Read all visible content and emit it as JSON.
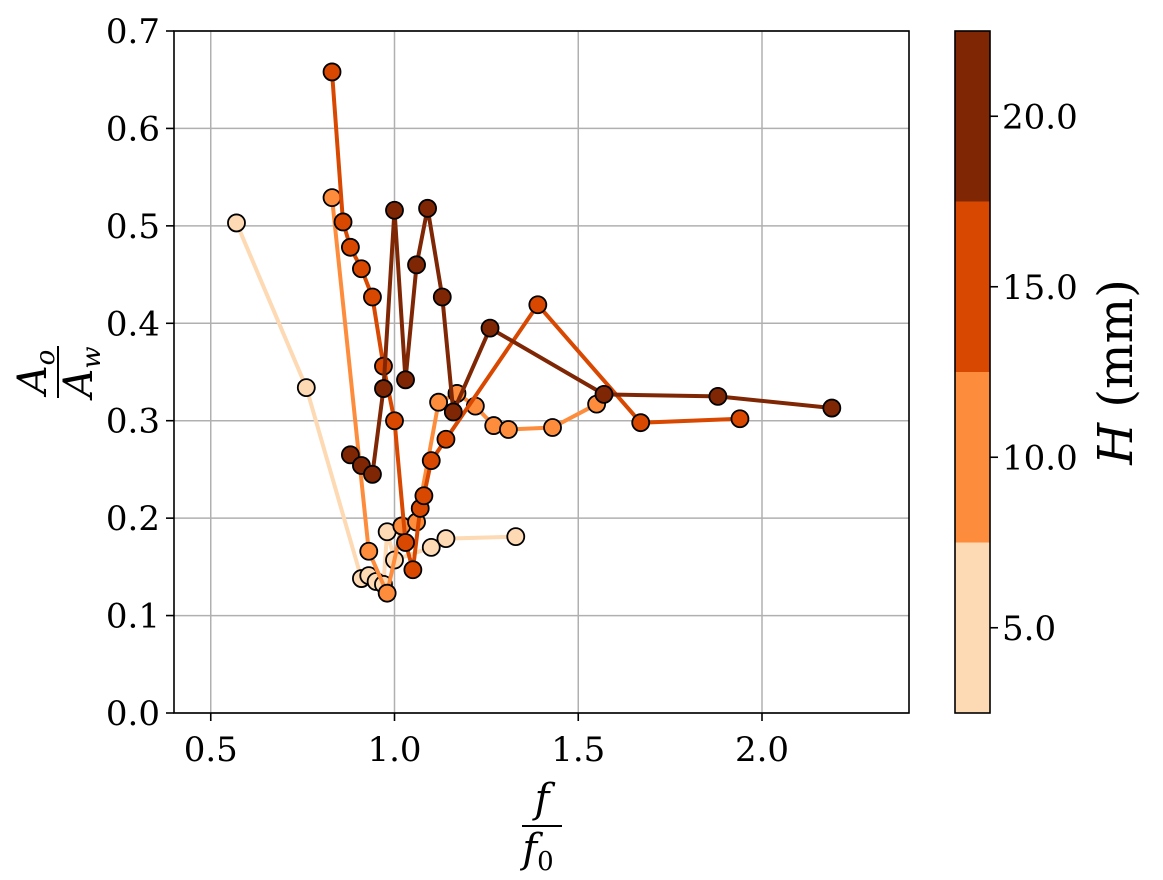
{
  "chart_data": {
    "type": "line",
    "title": "",
    "xlabel": {
      "num": "f",
      "den": "f",
      "den_sub": "0"
    },
    "ylabel": {
      "num": "A",
      "num_sub": "o",
      "den": "A",
      "den_sub": "w"
    },
    "xlim": [
      0.4,
      2.4
    ],
    "ylim": [
      0.0,
      0.7
    ],
    "xticks": [
      "0.5",
      "1.0",
      "1.5",
      "2.0"
    ],
    "xtick_values": [
      0.5,
      1.0,
      1.5,
      2.0
    ],
    "yticks": [
      "0.0",
      "0.1",
      "0.2",
      "0.3",
      "0.4",
      "0.5",
      "0.6",
      "0.7"
    ],
    "ytick_values": [
      0.0,
      0.1,
      0.2,
      0.3,
      0.4,
      0.5,
      0.6,
      0.7
    ],
    "grid": true,
    "marker": "circle",
    "series": [
      {
        "color": "#fdd9b4",
        "x": [
          0.57,
          0.76,
          0.91,
          0.93,
          0.95,
          0.97,
          0.98,
          1.0,
          1.1,
          1.14,
          1.33
        ],
        "y": [
          0.503,
          0.334,
          0.138,
          0.141,
          0.135,
          0.132,
          0.186,
          0.157,
          0.17,
          0.179,
          0.181
        ]
      },
      {
        "color": "#fd8d3c",
        "x": [
          0.83,
          0.93,
          0.98,
          1.02,
          1.06,
          1.12,
          1.17,
          1.22,
          1.27,
          1.31,
          1.43,
          1.55
        ],
        "y": [
          0.529,
          0.166,
          0.123,
          0.192,
          0.196,
          0.319,
          0.328,
          0.315,
          0.295,
          0.291,
          0.293,
          0.317
        ]
      },
      {
        "color": "#d94801",
        "x": [
          0.83,
          0.86,
          0.88,
          0.91,
          0.94,
          0.97,
          1.0,
          1.03,
          1.05,
          1.07,
          1.08,
          1.1,
          1.14,
          1.39,
          1.67,
          1.94
        ],
        "y": [
          0.658,
          0.504,
          0.478,
          0.456,
          0.427,
          0.356,
          0.3,
          0.175,
          0.147,
          0.21,
          0.223,
          0.259,
          0.281,
          0.419,
          0.298,
          0.302
        ]
      },
      {
        "color": "#7f2704",
        "x": [
          0.88,
          0.91,
          0.94,
          0.97,
          1.0,
          1.03,
          1.06,
          1.09,
          1.13,
          1.16,
          1.26,
          1.57,
          1.88,
          2.19
        ],
        "y": [
          0.265,
          0.254,
          0.245,
          0.333,
          0.516,
          0.342,
          0.46,
          0.518,
          0.427,
          0.309,
          0.395,
          0.327,
          0.325,
          0.313
        ]
      }
    ],
    "colorbar": {
      "label": "H",
      "unit": "(mm)",
      "range": [
        2.5,
        22.5
      ],
      "ticks": [
        "5.0",
        "10.0",
        "15.0",
        "20.0"
      ],
      "tick_values": [
        5,
        10,
        15,
        20
      ],
      "bands": [
        {
          "from": 2.5,
          "to": 7.5,
          "color": "#fdd9b4"
        },
        {
          "from": 7.5,
          "to": 12.5,
          "color": "#fd8d3c"
        },
        {
          "from": 12.5,
          "to": 17.5,
          "color": "#d94801"
        },
        {
          "from": 17.5,
          "to": 22.5,
          "color": "#7f2704"
        }
      ]
    }
  }
}
